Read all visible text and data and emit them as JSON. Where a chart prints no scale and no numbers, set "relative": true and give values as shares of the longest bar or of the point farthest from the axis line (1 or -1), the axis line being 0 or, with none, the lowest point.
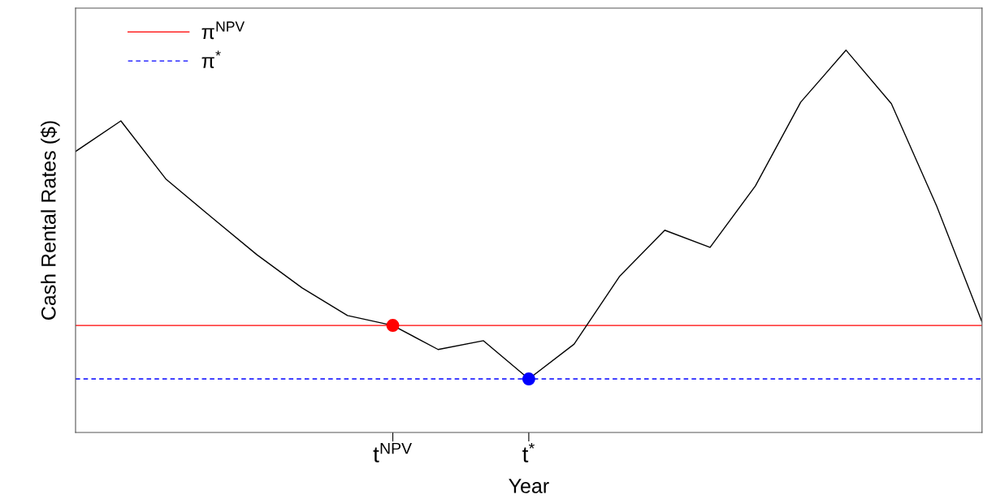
{
  "chart_data": {
    "type": "line",
    "relative": true,
    "xlabel": "Year",
    "ylabel": "Cash Rental Rates ($)",
    "categories": [
      null,
      null,
      null,
      null,
      null,
      null,
      null,
      "t$^{NPV}$",
      null,
      null,
      "t$^{*}$",
      null,
      null,
      null,
      null,
      null,
      null,
      null,
      null,
      null,
      null
    ],
    "series": [
      {
        "color": "#000000",
        "marker": "none",
        "values": [
          0.735,
          0.815,
          0.662,
          0.563,
          0.465,
          0.378,
          0.306,
          0.28,
          0.217,
          0.24,
          0.14,
          0.231,
          0.408,
          0.529,
          0.484,
          0.645,
          0.864,
          1,
          0.86,
          0.592,
          0.289
        ]
      },
      {
        "type": "scatter",
        "color": "#ff0000",
        "marker": "circle",
        "values": [
          null,
          null,
          null,
          null,
          null,
          null,
          null,
          0.28,
          null,
          null,
          null,
          null,
          null,
          null,
          null,
          null,
          null,
          null,
          null,
          null,
          null
        ]
      },
      {
        "type": "scatter",
        "color": "#0000ff",
        "marker": "circle",
        "values": [
          null,
          null,
          null,
          null,
          null,
          null,
          null,
          null,
          null,
          null,
          0.14,
          null,
          null,
          null,
          null,
          null,
          null,
          null,
          null,
          null,
          null
        ]
      }
    ],
    "ref_lines": [
      {
        "axis": "y",
        "value": 0.28,
        "label": "π$^{NPV}$",
        "color": "#ff0000",
        "line_style": "solid"
      },
      {
        "axis": "y",
        "value": 0.14,
        "label": "π$^{*}$",
        "color": "#0000ff",
        "line_style": "dashed"
      }
    ],
    "legend": "top left",
    "grid": false
  }
}
